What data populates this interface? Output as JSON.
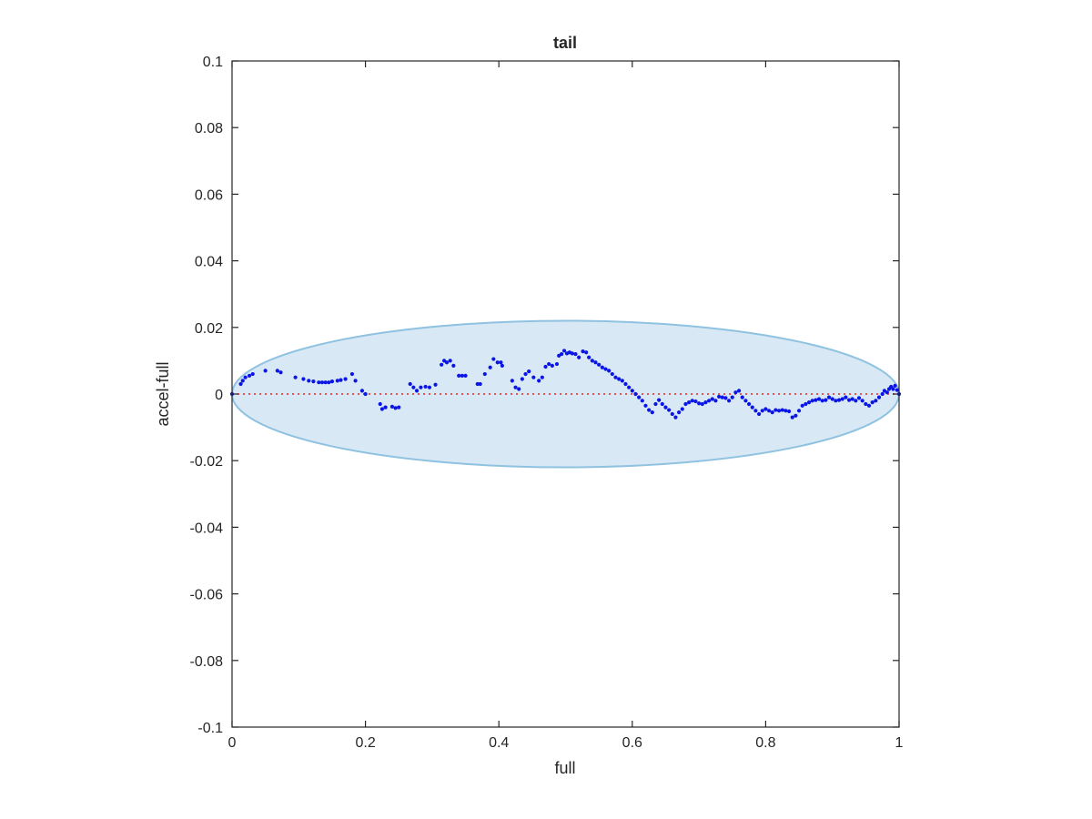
{
  "chart_data": {
    "type": "scatter",
    "title": "tail",
    "xlabel": "full",
    "ylabel": "accel-full",
    "xlim": [
      0,
      1
    ],
    "ylim": [
      -0.1,
      0.1
    ],
    "xticks": [
      {
        "value": 0,
        "label": "0"
      },
      {
        "value": 0.2,
        "label": "0.2"
      },
      {
        "value": 0.4,
        "label": "0.4"
      },
      {
        "value": 0.6,
        "label": "0.6"
      },
      {
        "value": 0.8,
        "label": "0.8"
      },
      {
        "value": 1,
        "label": "1"
      }
    ],
    "yticks": [
      {
        "value": 0.1,
        "label": "0.1"
      },
      {
        "value": 0.08,
        "label": "0.08"
      },
      {
        "value": 0.06,
        "label": "0.06"
      },
      {
        "value": 0.04,
        "label": "0.04"
      },
      {
        "value": 0.02,
        "label": "0.02"
      },
      {
        "value": 0,
        "label": "0"
      },
      {
        "value": -0.02,
        "label": "-0.02"
      },
      {
        "value": -0.04,
        "label": "-0.04"
      },
      {
        "value": -0.06,
        "label": "-0.06"
      },
      {
        "value": -0.08,
        "label": "-0.08"
      },
      {
        "value": -0.1,
        "label": "-0.1"
      }
    ],
    "grid": false,
    "ellipse": {
      "cx": 0.5,
      "cy": 0,
      "rx": 0.5,
      "ry": 0.022,
      "fill": "#d8e8f5",
      "stroke": "#8fc2e0"
    },
    "zero_line": {
      "y": 0,
      "x": [
        0,
        1
      ],
      "color": "#e8403a",
      "style": "dotted"
    },
    "points_color": "#0b16e6",
    "points": [
      [
        0.0,
        0.0
      ],
      [
        0.013,
        0.003
      ],
      [
        0.016,
        0.004
      ],
      [
        0.02,
        0.005
      ],
      [
        0.026,
        0.0055
      ],
      [
        0.031,
        0.006
      ],
      [
        0.05,
        0.007
      ],
      [
        0.068,
        0.007
      ],
      [
        0.073,
        0.0065
      ],
      [
        0.095,
        0.005
      ],
      [
        0.107,
        0.0045
      ],
      [
        0.115,
        0.004
      ],
      [
        0.122,
        0.0038
      ],
      [
        0.13,
        0.0035
      ],
      [
        0.135,
        0.0035
      ],
      [
        0.14,
        0.0035
      ],
      [
        0.145,
        0.0035
      ],
      [
        0.15,
        0.0038
      ],
      [
        0.158,
        0.004
      ],
      [
        0.163,
        0.0042
      ],
      [
        0.17,
        0.0045
      ],
      [
        0.18,
        0.006
      ],
      [
        0.185,
        0.004
      ],
      [
        0.195,
        0.001
      ],
      [
        0.2,
        0.0
      ],
      [
        0.222,
        -0.003
      ],
      [
        0.225,
        -0.0045
      ],
      [
        0.23,
        -0.004
      ],
      [
        0.24,
        -0.0038
      ],
      [
        0.245,
        -0.0042
      ],
      [
        0.25,
        -0.004
      ],
      [
        0.267,
        0.003
      ],
      [
        0.272,
        0.002
      ],
      [
        0.277,
        0.001
      ],
      [
        0.283,
        0.002
      ],
      [
        0.29,
        0.0022
      ],
      [
        0.296,
        0.002
      ],
      [
        0.305,
        0.0028
      ],
      [
        0.314,
        0.0088
      ],
      [
        0.318,
        0.01
      ],
      [
        0.322,
        0.0095
      ],
      [
        0.327,
        0.01
      ],
      [
        0.332,
        0.0085
      ],
      [
        0.34,
        0.0055
      ],
      [
        0.345,
        0.0055
      ],
      [
        0.35,
        0.0055
      ],
      [
        0.368,
        0.003
      ],
      [
        0.372,
        0.003
      ],
      [
        0.379,
        0.006
      ],
      [
        0.387,
        0.008
      ],
      [
        0.392,
        0.0105
      ],
      [
        0.398,
        0.0095
      ],
      [
        0.403,
        0.0095
      ],
      [
        0.405,
        0.0085
      ],
      [
        0.42,
        0.004
      ],
      [
        0.425,
        0.002
      ],
      [
        0.43,
        0.0015
      ],
      [
        0.435,
        0.0045
      ],
      [
        0.44,
        0.006
      ],
      [
        0.445,
        0.0068
      ],
      [
        0.452,
        0.005
      ],
      [
        0.46,
        0.004
      ],
      [
        0.465,
        0.005
      ],
      [
        0.47,
        0.0082
      ],
      [
        0.475,
        0.009
      ],
      [
        0.48,
        0.0085
      ],
      [
        0.487,
        0.009
      ],
      [
        0.49,
        0.0115
      ],
      [
        0.494,
        0.012
      ],
      [
        0.498,
        0.013
      ],
      [
        0.502,
        0.0122
      ],
      [
        0.506,
        0.0125
      ],
      [
        0.51,
        0.0122
      ],
      [
        0.515,
        0.012
      ],
      [
        0.52,
        0.011
      ],
      [
        0.526,
        0.0128
      ],
      [
        0.531,
        0.0125
      ],
      [
        0.535,
        0.011
      ],
      [
        0.54,
        0.01
      ],
      [
        0.545,
        0.0095
      ],
      [
        0.55,
        0.0088
      ],
      [
        0.555,
        0.008
      ],
      [
        0.56,
        0.0075
      ],
      [
        0.565,
        0.007
      ],
      [
        0.57,
        0.006
      ],
      [
        0.575,
        0.005
      ],
      [
        0.58,
        0.0045
      ],
      [
        0.585,
        0.004
      ],
      [
        0.59,
        0.003
      ],
      [
        0.595,
        0.002
      ],
      [
        0.6,
        0.001
      ],
      [
        0.605,
        0.0
      ],
      [
        0.61,
        -0.001
      ],
      [
        0.615,
        -0.002
      ],
      [
        0.62,
        -0.0035
      ],
      [
        0.625,
        -0.0048
      ],
      [
        0.63,
        -0.0055
      ],
      [
        0.635,
        -0.003
      ],
      [
        0.64,
        -0.0018
      ],
      [
        0.645,
        -0.003
      ],
      [
        0.65,
        -0.004
      ],
      [
        0.655,
        -0.0048
      ],
      [
        0.66,
        -0.006
      ],
      [
        0.665,
        -0.007
      ],
      [
        0.67,
        -0.0055
      ],
      [
        0.675,
        -0.0045
      ],
      [
        0.68,
        -0.003
      ],
      [
        0.685,
        -0.0025
      ],
      [
        0.69,
        -0.002
      ],
      [
        0.695,
        -0.0022
      ],
      [
        0.7,
        -0.0028
      ],
      [
        0.705,
        -0.003
      ],
      [
        0.71,
        -0.0025
      ],
      [
        0.715,
        -0.002
      ],
      [
        0.72,
        -0.0015
      ],
      [
        0.725,
        -0.002
      ],
      [
        0.73,
        -0.0008
      ],
      [
        0.735,
        -0.001
      ],
      [
        0.74,
        -0.0012
      ],
      [
        0.745,
        -0.002
      ],
      [
        0.75,
        -0.001
      ],
      [
        0.755,
        0.0005
      ],
      [
        0.76,
        0.001
      ],
      [
        0.765,
        -0.001
      ],
      [
        0.77,
        -0.002
      ],
      [
        0.775,
        -0.003
      ],
      [
        0.78,
        -0.004
      ],
      [
        0.785,
        -0.005
      ],
      [
        0.79,
        -0.006
      ],
      [
        0.795,
        -0.005
      ],
      [
        0.8,
        -0.0045
      ],
      [
        0.805,
        -0.005
      ],
      [
        0.81,
        -0.0055
      ],
      [
        0.815,
        -0.0048
      ],
      [
        0.82,
        -0.005
      ],
      [
        0.825,
        -0.0048
      ],
      [
        0.83,
        -0.005
      ],
      [
        0.835,
        -0.0052
      ],
      [
        0.84,
        -0.007
      ],
      [
        0.845,
        -0.0065
      ],
      [
        0.85,
        -0.005
      ],
      [
        0.855,
        -0.0035
      ],
      [
        0.86,
        -0.003
      ],
      [
        0.865,
        -0.0025
      ],
      [
        0.87,
        -0.002
      ],
      [
        0.875,
        -0.0018
      ],
      [
        0.88,
        -0.0015
      ],
      [
        0.885,
        -0.002
      ],
      [
        0.89,
        -0.0018
      ],
      [
        0.895,
        -0.001
      ],
      [
        0.9,
        -0.0015
      ],
      [
        0.905,
        -0.002
      ],
      [
        0.91,
        -0.0018
      ],
      [
        0.915,
        -0.0015
      ],
      [
        0.92,
        -0.001
      ],
      [
        0.925,
        -0.0018
      ],
      [
        0.93,
        -0.0015
      ],
      [
        0.935,
        -0.002
      ],
      [
        0.94,
        -0.0012
      ],
      [
        0.945,
        -0.002
      ],
      [
        0.95,
        -0.003
      ],
      [
        0.955,
        -0.0035
      ],
      [
        0.96,
        -0.0025
      ],
      [
        0.965,
        -0.002
      ],
      [
        0.97,
        -0.001
      ],
      [
        0.975,
        0.0
      ],
      [
        0.978,
        0.001
      ],
      [
        0.982,
        0.0005
      ],
      [
        0.985,
        0.0015
      ],
      [
        0.988,
        0.0022
      ],
      [
        0.991,
        0.0015
      ],
      [
        0.994,
        0.0025
      ],
      [
        0.997,
        0.0012
      ],
      [
        1.0,
        0.0
      ]
    ]
  }
}
